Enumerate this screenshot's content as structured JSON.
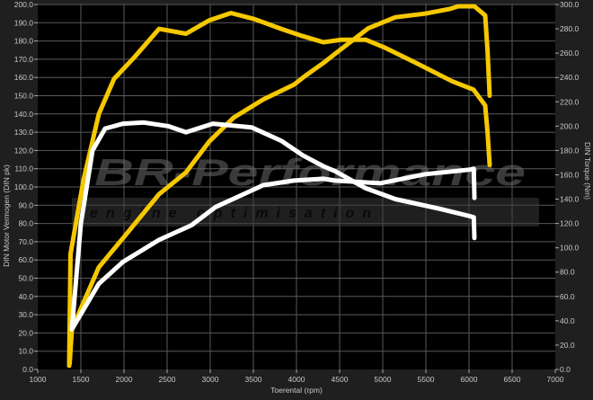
{
  "chart_data": {
    "type": "line",
    "title": "",
    "xlabel": "Toerental (rpm)",
    "ylabel_left": "DIN Motor Vermogen (DIN pk)",
    "ylabel_right": "DIN Torque (Nm)",
    "xlim": [
      1000,
      7000
    ],
    "ylim_left": [
      0,
      200
    ],
    "ylim_right": [
      0,
      300
    ],
    "x_ticks": [
      "1000",
      "1500",
      "2000",
      "2500",
      "3000",
      "3500",
      "4000",
      "4500",
      "5000",
      "5500",
      "6000",
      "6500",
      "7000"
    ],
    "y_ticks_left": [
      "0.0",
      "10.0",
      "20.0",
      "30.0",
      "40.0",
      "50.0",
      "60.0",
      "70.0",
      "80.0",
      "90.0",
      "100.0",
      "110.0",
      "120.0",
      "130.0",
      "140.0",
      "150.0",
      "160.0",
      "170.0",
      "180.0",
      "190.0",
      "200.0"
    ],
    "y_ticks_right": [
      "0.0",
      "20.0",
      "40.0",
      "60.0",
      "80.0",
      "100.0",
      "120.0",
      "140.0",
      "160.0",
      "180.0",
      "200.0",
      "220.0",
      "240.0",
      "260.0",
      "280.0",
      "300.0"
    ],
    "grid": true,
    "legend": "none",
    "colors": {
      "tuned": "#f5c800",
      "stock": "#ffffff",
      "background": "#000000",
      "frame": "#1f1f1f",
      "grid": "#5a5a5a"
    },
    "series": [
      {
        "color": "#f5c800",
        "axis": "left",
        "quantity": "power",
        "points": [
          [
            1370,
            3
          ],
          [
            1396,
            22
          ],
          [
            1708,
            56
          ],
          [
            1990,
            72
          ],
          [
            2406,
            96
          ],
          [
            2719,
            108
          ],
          [
            2990,
            125
          ],
          [
            3271,
            138
          ],
          [
            3615,
            148
          ],
          [
            3969,
            156
          ],
          [
            4104,
            161
          ],
          [
            4313,
            168
          ],
          [
            4448,
            173
          ],
          [
            4833,
            187
          ],
          [
            5146,
            193
          ],
          [
            5490,
            195
          ],
          [
            5771,
            197.5
          ],
          [
            5875,
            199
          ],
          [
            6063,
            199
          ],
          [
            6188,
            194
          ],
          [
            6215,
            175
          ],
          [
            6240,
            150
          ]
        ]
      },
      {
        "color": "#f5c800",
        "axis": "right",
        "quantity": "torque",
        "points": [
          [
            1365,
            3
          ],
          [
            1380,
            95
          ],
          [
            1531,
            156
          ],
          [
            1708,
            210
          ],
          [
            1885,
            239
          ],
          [
            2125,
            257
          ],
          [
            2406,
            280
          ],
          [
            2719,
            276
          ],
          [
            2990,
            287
          ],
          [
            3240,
            293
          ],
          [
            3510,
            288
          ],
          [
            3823,
            280
          ],
          [
            4073,
            274
          ],
          [
            4313,
            269
          ],
          [
            4521,
            271
          ],
          [
            4802,
            271
          ],
          [
            5010,
            265
          ],
          [
            5385,
            252
          ],
          [
            5802,
            237
          ],
          [
            6052,
            230
          ],
          [
            6188,
            217
          ],
          [
            6215,
            195
          ],
          [
            6240,
            168
          ]
        ]
      },
      {
        "color": "#ffffff",
        "axis": "left",
        "quantity": "power",
        "points": [
          [
            1396,
            22
          ],
          [
            1708,
            47
          ],
          [
            1990,
            59
          ],
          [
            2406,
            71
          ],
          [
            2781,
            79
          ],
          [
            3063,
            89
          ],
          [
            3615,
            101
          ],
          [
            3969,
            103.5
          ],
          [
            4313,
            104.5
          ],
          [
            4448,
            103.5
          ],
          [
            4969,
            102
          ],
          [
            5490,
            107
          ],
          [
            6010,
            109.5
          ],
          [
            6055,
            110
          ],
          [
            6063,
            94
          ]
        ]
      },
      {
        "color": "#ffffff",
        "axis": "right",
        "quantity": "torque",
        "points": [
          [
            1396,
            33
          ],
          [
            1500,
            120
          ],
          [
            1635,
            180
          ],
          [
            1781,
            198
          ],
          [
            1990,
            202
          ],
          [
            2229,
            203
          ],
          [
            2510,
            200
          ],
          [
            2719,
            195
          ],
          [
            3031,
            202
          ],
          [
            3479,
            199
          ],
          [
            3823,
            188
          ],
          [
            4073,
            176
          ],
          [
            4313,
            167
          ],
          [
            4448,
            163
          ],
          [
            4802,
            149
          ],
          [
            5146,
            140
          ],
          [
            5667,
            132
          ],
          [
            6010,
            126
          ],
          [
            6055,
            125
          ],
          [
            6063,
            108
          ]
        ]
      }
    ]
  },
  "watermark": {
    "brand": "BR-Performance",
    "tagline": "engine optimisation"
  }
}
